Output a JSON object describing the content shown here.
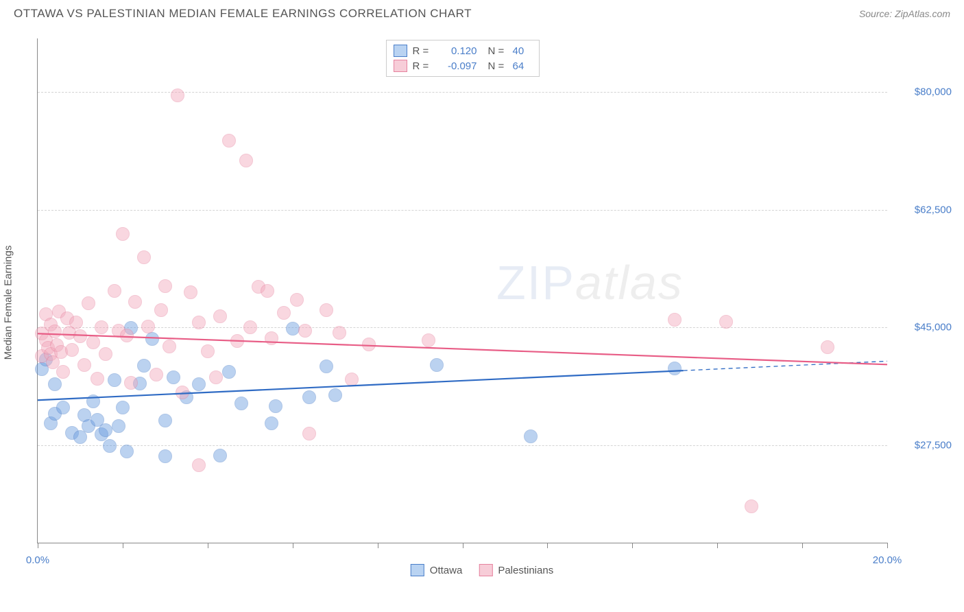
{
  "header": {
    "title": "OTTAWA VS PALESTINIAN MEDIAN FEMALE EARNINGS CORRELATION CHART",
    "source_prefix": "Source: ",
    "source": "ZipAtlas.com"
  },
  "chart": {
    "type": "scatter",
    "background_color": "#ffffff",
    "grid_color": "#d4d4d4",
    "axis_color": "#888888",
    "y_axis_title": "Median Female Earnings",
    "y_axis_title_fontsize": 15,
    "label_color": "#4a7ec9",
    "label_fontsize": 15,
    "xlim": [
      0,
      20
    ],
    "x_ticks": [
      0,
      2,
      4,
      6,
      8,
      10,
      12,
      14,
      16,
      18,
      20
    ],
    "x_tick_labels": {
      "0": "0.0%",
      "20": "20.0%"
    },
    "ylim": [
      13000,
      88000
    ],
    "y_grid": [
      27500,
      45000,
      62500,
      80000
    ],
    "y_labels": [
      "$27,500",
      "$45,000",
      "$62,500",
      "$80,000"
    ],
    "marker_radius": 10,
    "marker_opacity": 0.45,
    "marker_border_opacity": 0.85,
    "series": [
      {
        "name": "Ottawa",
        "color": "#6a9de0",
        "border_color": "#4a7ec9",
        "R": "0.120",
        "N": "40",
        "trend": {
          "x1": 0,
          "y1": 34200,
          "x2": 15.2,
          "y2": 38600,
          "x2_dash": 20,
          "y2_dash": 40000,
          "color": "#2f6bc4",
          "width": 2.2
        },
        "points": [
          [
            0.1,
            38800
          ],
          [
            0.2,
            40200
          ],
          [
            0.3,
            30800
          ],
          [
            0.4,
            36600
          ],
          [
            0.4,
            32200
          ],
          [
            0.6,
            33100
          ],
          [
            0.8,
            29300
          ],
          [
            1.0,
            28700
          ],
          [
            1.1,
            32000
          ],
          [
            1.2,
            30300
          ],
          [
            1.3,
            34000
          ],
          [
            1.4,
            31300
          ],
          [
            1.5,
            29100
          ],
          [
            1.6,
            29700
          ],
          [
            1.7,
            27400
          ],
          [
            1.8,
            37200
          ],
          [
            1.9,
            30300
          ],
          [
            2.0,
            33100
          ],
          [
            2.1,
            26600
          ],
          [
            2.2,
            44900
          ],
          [
            2.4,
            36700
          ],
          [
            2.5,
            39300
          ],
          [
            2.7,
            43300
          ],
          [
            3.0,
            31200
          ],
          [
            3.0,
            25900
          ],
          [
            3.2,
            37600
          ],
          [
            3.5,
            34600
          ],
          [
            3.8,
            36600
          ],
          [
            4.3,
            26000
          ],
          [
            4.5,
            38400
          ],
          [
            4.8,
            33700
          ],
          [
            5.5,
            30800
          ],
          [
            5.6,
            33300
          ],
          [
            6.0,
            44800
          ],
          [
            6.4,
            34600
          ],
          [
            6.8,
            39200
          ],
          [
            7.0,
            34900
          ],
          [
            9.4,
            39400
          ],
          [
            11.6,
            28800
          ],
          [
            15.0,
            38900
          ]
        ]
      },
      {
        "name": "Palestinians",
        "color": "#f2a8bb",
        "border_color": "#e6829e",
        "R": "-0.097",
        "N": "64",
        "trend": {
          "x1": 0,
          "y1": 44100,
          "x2": 20,
          "y2": 39500,
          "color": "#e85d86",
          "width": 2.2
        },
        "points": [
          [
            0.1,
            44100
          ],
          [
            0.1,
            40800
          ],
          [
            0.2,
            47000
          ],
          [
            0.2,
            43100
          ],
          [
            0.25,
            42000
          ],
          [
            0.3,
            45400
          ],
          [
            0.3,
            41100
          ],
          [
            0.35,
            39800
          ],
          [
            0.4,
            44400
          ],
          [
            0.45,
            42400
          ],
          [
            0.5,
            47400
          ],
          [
            0.55,
            41400
          ],
          [
            0.6,
            38400
          ],
          [
            0.7,
            46400
          ],
          [
            0.75,
            44200
          ],
          [
            0.8,
            41700
          ],
          [
            0.9,
            45800
          ],
          [
            1.0,
            43700
          ],
          [
            1.1,
            39400
          ],
          [
            1.2,
            48600
          ],
          [
            1.3,
            42800
          ],
          [
            1.4,
            37400
          ],
          [
            1.5,
            45000
          ],
          [
            1.6,
            41100
          ],
          [
            1.8,
            50400
          ],
          [
            1.9,
            44500
          ],
          [
            2.0,
            58900
          ],
          [
            2.1,
            43800
          ],
          [
            2.2,
            36800
          ],
          [
            2.3,
            48800
          ],
          [
            2.5,
            55400
          ],
          [
            2.6,
            45100
          ],
          [
            2.8,
            38000
          ],
          [
            2.9,
            47600
          ],
          [
            3.0,
            51200
          ],
          [
            3.1,
            42200
          ],
          [
            3.3,
            79500
          ],
          [
            3.4,
            35300
          ],
          [
            3.6,
            50200
          ],
          [
            3.8,
            45800
          ],
          [
            3.8,
            24500
          ],
          [
            4.0,
            41500
          ],
          [
            4.2,
            37600
          ],
          [
            4.3,
            46700
          ],
          [
            4.5,
            72800
          ],
          [
            4.7,
            43000
          ],
          [
            4.9,
            69800
          ],
          [
            5.0,
            45000
          ],
          [
            5.2,
            51100
          ],
          [
            5.4,
            50400
          ],
          [
            5.5,
            43400
          ],
          [
            5.8,
            47200
          ],
          [
            6.1,
            49100
          ],
          [
            6.3,
            44500
          ],
          [
            6.4,
            29200
          ],
          [
            6.8,
            47600
          ],
          [
            7.1,
            44200
          ],
          [
            7.4,
            37300
          ],
          [
            7.8,
            42500
          ],
          [
            9.2,
            43100
          ],
          [
            15.0,
            46200
          ],
          [
            16.2,
            45900
          ],
          [
            16.8,
            18400
          ],
          [
            18.6,
            42100
          ]
        ]
      }
    ],
    "watermark": {
      "zip": "ZIP",
      "atlas": "atlas"
    },
    "legend_bottom": [
      {
        "label": "Ottawa",
        "fill": "#b9d3f2",
        "border": "#4a7ec9"
      },
      {
        "label": "Palestinians",
        "fill": "#f7cdd8",
        "border": "#e6829e"
      }
    ],
    "legend_top_swatches": [
      {
        "fill": "#b9d3f2",
        "border": "#4a7ec9"
      },
      {
        "fill": "#f7cdd8",
        "border": "#e6829e"
      }
    ]
  }
}
